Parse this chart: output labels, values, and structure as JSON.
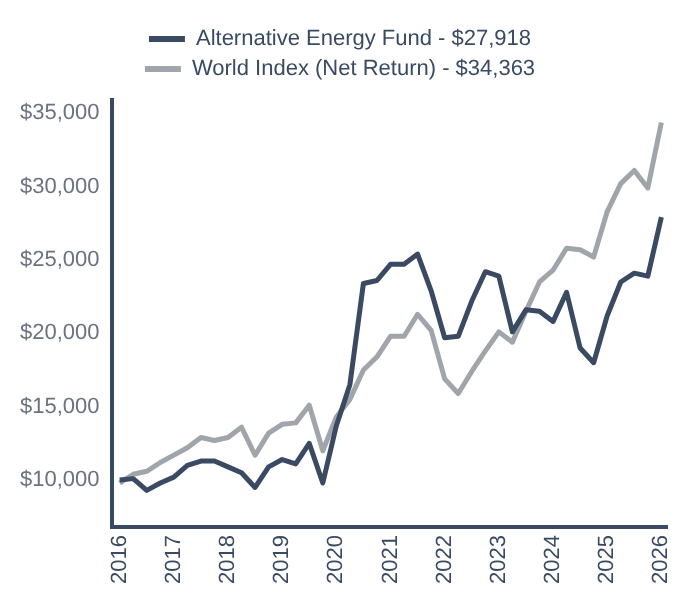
{
  "chart_data": {
    "type": "line",
    "legend": "top",
    "grid": false,
    "marker": "none",
    "line_style": "solid",
    "x": [
      2016,
      2016.25,
      2016.5,
      2016.75,
      2017,
      2017.25,
      2017.5,
      2017.75,
      2018,
      2018.25,
      2018.5,
      2018.75,
      2019,
      2019.25,
      2019.5,
      2019.75,
      2020,
      2020.25,
      2020.5,
      2020.75,
      2021,
      2021.25,
      2021.5,
      2021.75,
      2022,
      2022.25,
      2022.5,
      2022.75,
      2023,
      2023.25,
      2023.5,
      2023.75,
      2024,
      2024.25,
      2024.5,
      2024.75,
      2025,
      2025.25,
      2025.5,
      2025.75,
      2026
    ],
    "xlim": [
      2015.85,
      2026.1
    ],
    "xticks": [
      2016,
      2017,
      2018,
      2019,
      2020,
      2021,
      2022,
      2023,
      2024,
      2025,
      2026
    ],
    "ylim": [
      6800,
      35900
    ],
    "yticks": [
      {
        "value": 10000,
        "label": "$10,000"
      },
      {
        "value": 15000,
        "label": "$15,000"
      },
      {
        "value": 20000,
        "label": "$20,000"
      },
      {
        "value": 25000,
        "label": "$25,000"
      },
      {
        "value": 30000,
        "label": "$30,000"
      },
      {
        "value": 35000,
        "label": "$35,000"
      }
    ],
    "series": [
      {
        "name": "Alternative Energy Fund - $27,918",
        "color": "#3a4a63",
        "values": [
          10000,
          10100,
          9300,
          9800,
          10200,
          11000,
          11300,
          11300,
          10900,
          10500,
          9500,
          10900,
          11400,
          11100,
          12500,
          9800,
          13700,
          16500,
          23400,
          23600,
          24700,
          24700,
          25400,
          22900,
          19700,
          19800,
          22200,
          24200,
          23900,
          20100,
          21600,
          21500,
          20800,
          22800,
          19000,
          18000,
          21200,
          23500,
          24100,
          23900,
          27918
        ]
      },
      {
        "name": "World Index (Net Return) - $34,363",
        "color": "#a0a4ab",
        "values": [
          9800,
          10400,
          10600,
          11200,
          11700,
          12200,
          12900,
          12700,
          12900,
          13600,
          11700,
          13200,
          13800,
          13900,
          15100,
          12000,
          14300,
          15500,
          17500,
          18400,
          19800,
          19800,
          21300,
          20200,
          16900,
          15900,
          17400,
          18800,
          20100,
          19400,
          21500,
          23500,
          24300,
          25800,
          25700,
          25200,
          28300,
          30200,
          31100,
          29900,
          34363
        ]
      }
    ]
  }
}
